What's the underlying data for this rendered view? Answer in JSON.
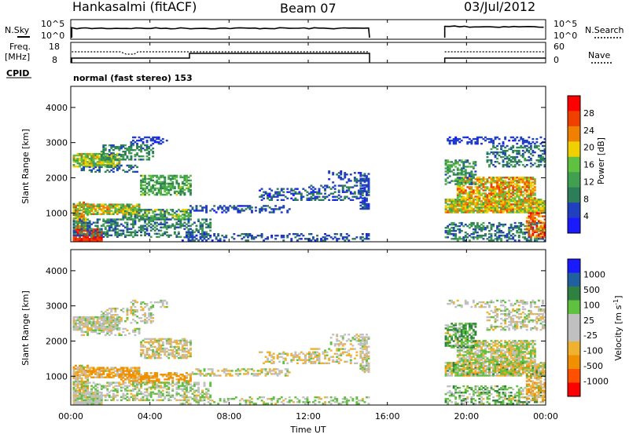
{
  "header": {
    "station": "Hankasalmi (fitACF)",
    "beam": "Beam 07",
    "date": "03/Jul/2012"
  },
  "noise_panel": {
    "left_label": "N.Sky",
    "right_label": "N.Search",
    "left_ticks": [
      "10^5",
      "10^0"
    ],
    "right_ticks": [
      "10^5",
      "10^0"
    ]
  },
  "freq_panel": {
    "left_label_1": "Freq.",
    "left_label_2": "[MHz]",
    "right_label": "Nave",
    "left_ticks": [
      "18",
      "8"
    ],
    "right_ticks": [
      "60",
      "0"
    ]
  },
  "cpid": {
    "label": "CPID",
    "value": "normal (fast stereo) 153"
  },
  "colors": {
    "power": [
      "#1a1aff",
      "#2040c0",
      "#2e7d5a",
      "#40a050",
      "#60c040",
      "#f0d000",
      "#f08000",
      "#f04000",
      "#ff0000"
    ],
    "velocity": [
      "#ff0000",
      "#ff5000",
      "#f09000",
      "#f0b030",
      "#c0c0c0",
      "#c0c0c0",
      "#60c040",
      "#308040",
      "#2060a0",
      "#1a1aff"
    ]
  },
  "chart_data": [
    {
      "type": "heatmap",
      "name": "power",
      "ylabel": "Slant Range [km]",
      "yticks": [
        "1000",
        "2000",
        "3000",
        "4000"
      ],
      "ylim": [
        180,
        4600
      ],
      "xlim": [
        0,
        24
      ],
      "colorbar_label": "Power [dB]",
      "colorbar_ticks": [
        "4",
        "8",
        "12",
        "16",
        "20",
        "24",
        "28"
      ],
      "colorbar_range": [
        0,
        32
      ]
    },
    {
      "type": "heatmap",
      "name": "velocity",
      "ylabel": "Slant Range [km]",
      "yticks": [
        "1000",
        "2000",
        "3000",
        "4000"
      ],
      "ylim": [
        180,
        4600
      ],
      "xlim": [
        0,
        24
      ],
      "colorbar_label": "Velocity [m s^-1]",
      "colorbar_ticks": [
        "-1000",
        "-500",
        "-100",
        "-25",
        "25",
        "100",
        "500",
        "1000"
      ]
    }
  ],
  "xaxis": {
    "ticks": [
      "00:00",
      "04:00",
      "08:00",
      "12:00",
      "16:00",
      "20:00",
      "00:00"
    ],
    "label": "Time UT"
  }
}
